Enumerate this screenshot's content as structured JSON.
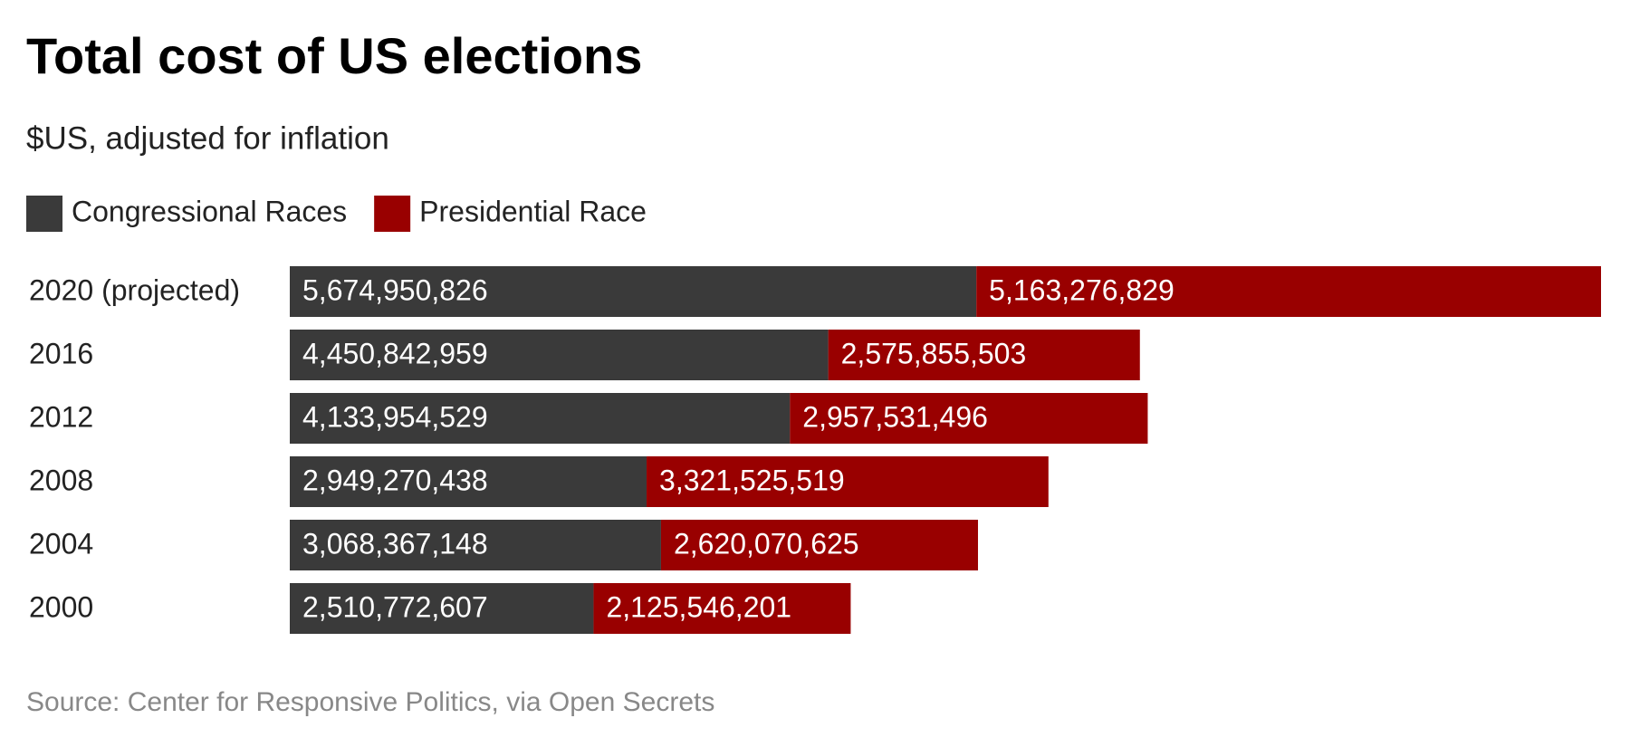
{
  "chart_data": {
    "type": "bar",
    "orientation": "horizontal",
    "stacked": true,
    "title": "Total cost of US elections",
    "subtitle": "$US, adjusted for inflation",
    "source": "Source: Center for Responsive Politics, via Open Secrets",
    "categories": [
      "2020 (projected)",
      "2016",
      "2012",
      "2008",
      "2004",
      "2000"
    ],
    "series": [
      {
        "name": "Congressional Races",
        "color": "#3a3a3a",
        "values": [
          5674950826,
          4450842959,
          4133954529,
          2949270438,
          3068367148,
          2510772607
        ],
        "value_labels": [
          "5,674,950,826",
          "4,450,842,959",
          "4,133,954,529",
          "2,949,270,438",
          "3,068,367,148",
          "2,510,772,607"
        ]
      },
      {
        "name": "Presidential Race",
        "color": "#990000",
        "values": [
          5163276829,
          2575855503,
          2957531496,
          3321525519,
          2620070625,
          2125546201
        ],
        "value_labels": [
          "5,163,276,829",
          "2,575,855,503",
          "2,957,531,496",
          "3,321,525,519",
          "2,620,070,625",
          "2,125,546,201"
        ]
      }
    ]
  }
}
